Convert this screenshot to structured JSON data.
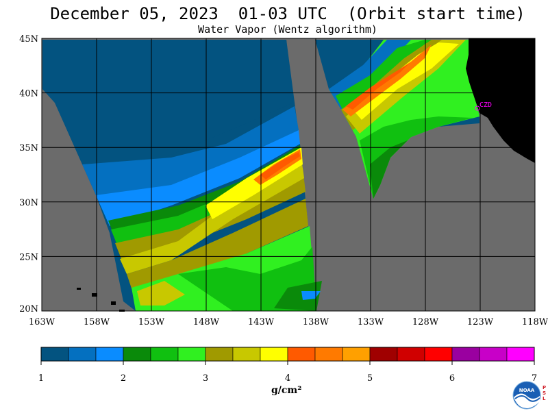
{
  "header": {
    "title": "December 05, 2023  01-03 UTC  (Orbit start time)",
    "subtitle": "Water Vapor (Wentz algorithm)"
  },
  "axes": {
    "lat_labels": [
      "45N",
      "40N",
      "35N",
      "30N",
      "25N",
      "20N"
    ],
    "lon_labels": [
      "163W",
      "158W",
      "153W",
      "148W",
      "143W",
      "138W",
      "133W",
      "128W",
      "123W",
      "118W"
    ]
  },
  "station": {
    "label": "CZD",
    "color": "#ff00ff"
  },
  "colorbar": {
    "colors": [
      "#035380",
      "#0470c0",
      "#0a8cff",
      "#0a8a0a",
      "#10c010",
      "#30f020",
      "#a09a00",
      "#c8c800",
      "#ffff00",
      "#ff5a00",
      "#ff7a00",
      "#ffa000",
      "#a00000",
      "#d00000",
      "#ff0000",
      "#9a00a0",
      "#c800c8",
      "#ff00ff"
    ],
    "tick_labels": [
      "1",
      "2",
      "3",
      "4",
      "5",
      "6",
      "7"
    ],
    "units": "g/cm²"
  },
  "logo": {
    "label": "NOAA",
    "side_text": "PSL"
  }
}
